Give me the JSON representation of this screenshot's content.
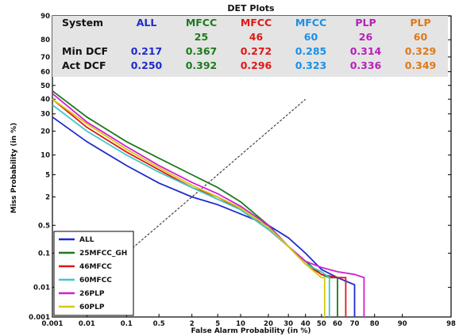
{
  "table": {
    "header_label": "System",
    "row1_label": "Min DCF",
    "row2_label": "Act DCF",
    "columns": [
      {
        "name": "ALL",
        "sub": "",
        "min": "0.217",
        "act": "0.250",
        "color": "#1f2bcc"
      },
      {
        "name": "MFCC",
        "sub": "25",
        "min": "0.367",
        "act": "0.392",
        "color": "#1e7a1e"
      },
      {
        "name": "MFCC",
        "sub": "46",
        "min": "0.272",
        "act": "0.296",
        "color": "#e01818"
      },
      {
        "name": "MFCC",
        "sub": "60",
        "min": "0.285",
        "act": "0.323",
        "color": "#1a90e8"
      },
      {
        "name": "PLP",
        "sub": "26",
        "min": "0.314",
        "act": "0.336",
        "color": "#b820b8"
      },
      {
        "name": "PLP",
        "sub": "60",
        "min": "0.329",
        "act": "0.349",
        "color": "#e07818"
      }
    ]
  },
  "chart_data": {
    "type": "line",
    "title": "DET Plots",
    "xlabel": "False Alarm Probability (in %)",
    "ylabel": "Miss Probability (in %)",
    "scale": "probit",
    "xlim": [
      0.001,
      98
    ],
    "ylim": [
      0.001,
      90
    ],
    "x_ticks": [
      0.001,
      0.01,
      0.1,
      0.5,
      2,
      5,
      10,
      20,
      30,
      40,
      50,
      60,
      70,
      80,
      90,
      98
    ],
    "x_tick_labels": [
      "0.001",
      "0.01",
      "0.1",
      "0.5",
      "2",
      "5",
      "10",
      "20",
      "30",
      "40",
      "50",
      "60",
      "70",
      "80",
      "90",
      "98"
    ],
    "y_ticks": [
      0.001,
      0.01,
      0.1,
      0.5,
      2,
      5,
      10,
      20,
      30,
      40,
      50,
      60,
      70,
      80,
      90
    ],
    "y_tick_labels": [
      "0.001",
      "0.01",
      "0.1",
      "0.5",
      "2",
      "5",
      "10",
      "20",
      "30",
      "40",
      "50",
      "60",
      "70",
      "80",
      "90"
    ],
    "grid": false,
    "legend_position": "bottom-left",
    "series": [
      {
        "name": "ALL",
        "color": "#1f2bcc",
        "points": [
          [
            0.001,
            28
          ],
          [
            0.01,
            15
          ],
          [
            0.1,
            7
          ],
          [
            0.5,
            3.6
          ],
          [
            2,
            2
          ],
          [
            5,
            1.4
          ],
          [
            10,
            0.9
          ],
          [
            20,
            0.5
          ],
          [
            30,
            0.25
          ],
          [
            40,
            0.1
          ],
          [
            50,
            0.035
          ],
          [
            60,
            0.02
          ],
          [
            70,
            0.012
          ],
          [
            70,
            0.001
          ]
        ]
      },
      {
        "name": "25MFCC_GH",
        "color": "#1e7a1e",
        "points": [
          [
            0.001,
            46
          ],
          [
            0.01,
            28
          ],
          [
            0.1,
            15
          ],
          [
            0.5,
            9
          ],
          [
            2,
            5
          ],
          [
            5,
            3
          ],
          [
            10,
            1.6
          ],
          [
            20,
            0.5
          ],
          [
            30,
            0.15
          ],
          [
            40,
            0.06
          ],
          [
            50,
            0.025
          ],
          [
            55,
            0.02
          ],
          [
            60,
            0.02
          ],
          [
            60,
            0.001
          ]
        ]
      },
      {
        "name": "46MFCC",
        "color": "#e01818",
        "points": [
          [
            0.001,
            40
          ],
          [
            0.01,
            22
          ],
          [
            0.1,
            11
          ],
          [
            0.5,
            6
          ],
          [
            2,
            3
          ],
          [
            5,
            2
          ],
          [
            10,
            1.1
          ],
          [
            20,
            0.4
          ],
          [
            30,
            0.15
          ],
          [
            40,
            0.05
          ],
          [
            50,
            0.025
          ],
          [
            60,
            0.02
          ],
          [
            65,
            0.02
          ],
          [
            65,
            0.001
          ]
        ]
      },
      {
        "name": "60MFCC",
        "color": "#40c8c8",
        "points": [
          [
            0.001,
            36
          ],
          [
            0.01,
            20
          ],
          [
            0.1,
            10
          ],
          [
            0.5,
            5.5
          ],
          [
            2,
            3
          ],
          [
            5,
            1.8
          ],
          [
            10,
            1.1
          ],
          [
            20,
            0.4
          ],
          [
            30,
            0.15
          ],
          [
            40,
            0.05
          ],
          [
            50,
            0.03
          ],
          [
            55,
            0.02
          ],
          [
            55,
            0.001
          ]
        ]
      },
      {
        "name": "26PLP",
        "color": "#d020d0",
        "points": [
          [
            0.001,
            44
          ],
          [
            0.01,
            25
          ],
          [
            0.1,
            13
          ],
          [
            0.5,
            7
          ],
          [
            2,
            3.7
          ],
          [
            5,
            2.3
          ],
          [
            10,
            1.3
          ],
          [
            20,
            0.5
          ],
          [
            30,
            0.15
          ],
          [
            40,
            0.06
          ],
          [
            50,
            0.04
          ],
          [
            60,
            0.03
          ],
          [
            70,
            0.025
          ],
          [
            75,
            0.02
          ],
          [
            75,
            0.001
          ]
        ]
      },
      {
        "name": "60PLP",
        "color": "#d8c810",
        "points": [
          [
            0.001,
            40
          ],
          [
            0.01,
            24
          ],
          [
            0.1,
            12
          ],
          [
            0.5,
            6.5
          ],
          [
            2,
            3.3
          ],
          [
            5,
            2
          ],
          [
            10,
            1.2
          ],
          [
            20,
            0.45
          ],
          [
            30,
            0.15
          ],
          [
            40,
            0.05
          ],
          [
            50,
            0.02
          ],
          [
            52,
            0.02
          ],
          [
            52,
            0.001
          ]
        ]
      }
    ]
  }
}
